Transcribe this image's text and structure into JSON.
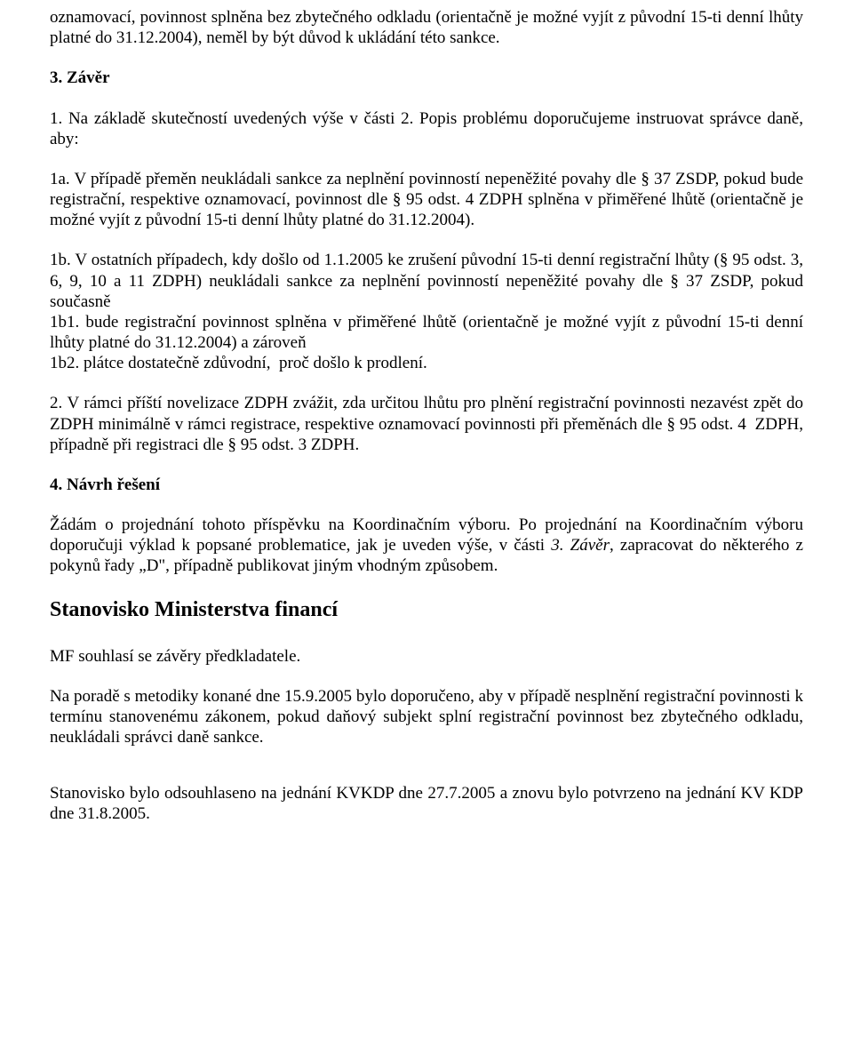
{
  "p_top": "oznamovací, povinnost splněna bez zbytečného odkladu (orientačně je možné vyjít z původní 15-ti denní lhůty platné do 31.12.2004), neměl by být důvod k ukládání této sankce.",
  "zaver_head": "3. Závěr",
  "p1": "1. Na základě skutečností uvedených výše v části 2. Popis problému doporučujeme instruovat správce daně, aby:",
  "p1a": "1a. V případě přeměn neukládali sankce za neplnění povinností nepeněžité povahy dle § 37 ZSDP, pokud bude registrační, respektive oznamovací, povinnost dle § 95 odst. 4 ZDPH splněna v přiměřené lhůtě (orientačně je možné vyjít z původní 15-ti denní lhůty platné do 31.12.2004).",
  "p1b": "1b. V ostatních případech, kdy došlo od 1.1.2005 ke zrušení původní 15-ti denní registrační lhůty (§ 95 odst. 3, 6, 9, 10 a 11 ZDPH) neukládali sankce za neplnění povinností nepeněžité povahy dle § 37 ZSDP, pokud současně\n1b1. bude registrační povinnost splněna v přiměřené lhůtě (orientačně je možné vyjít z původní 15-ti denní lhůty platné do 31.12.2004) a zároveň\n1b2. plátce dostatečně zdůvodní,  proč došlo k prodlení.",
  "p2": "2. V rámci příští novelizace ZDPH zvážit, zda určitou lhůtu pro plnění registrační povinnosti nezavést zpět do ZDPH minimálně v rámci registrace, respektive oznamovací povinnosti při přeměnách dle § 95 odst. 4  ZDPH, případně při registraci dle § 95 odst. 3 ZDPH.",
  "navrh_head": "4. Návrh řešení",
  "p_navrh_pre": "Žádám o projednání tohoto příspěvku na Koordinačním výboru. Po projednání na Koordinačním výboru doporučuji výklad k popsané problematice, jak je uveden výše, v části ",
  "p_navrh_italic": "3. Závěr",
  "p_navrh_post": ", zapracovat do některého z pokynů řady „D\", případně publikovat jiným vhodným způsobem.",
  "stanovisko_head": "Stanovisko Ministerstva financí",
  "p_mf1": "MF souhlasí se závěry předkladatele.",
  "p_mf2": "Na poradě s metodiky konané dne 15.9.2005 bylo doporučeno, aby v případě nesplnění registrační povinnosti k termínu stanovenému zákonem, pokud daňový subjekt splní registrační povinnost bez zbytečného odkladu, neukládali správci daně sankce.",
  "p_mf3": "Stanovisko bylo odsouhlaseno na jednání KVKDP dne 27.7.2005 a znovu bylo potvrzeno na jednání KV KDP dne 31.8.2005."
}
